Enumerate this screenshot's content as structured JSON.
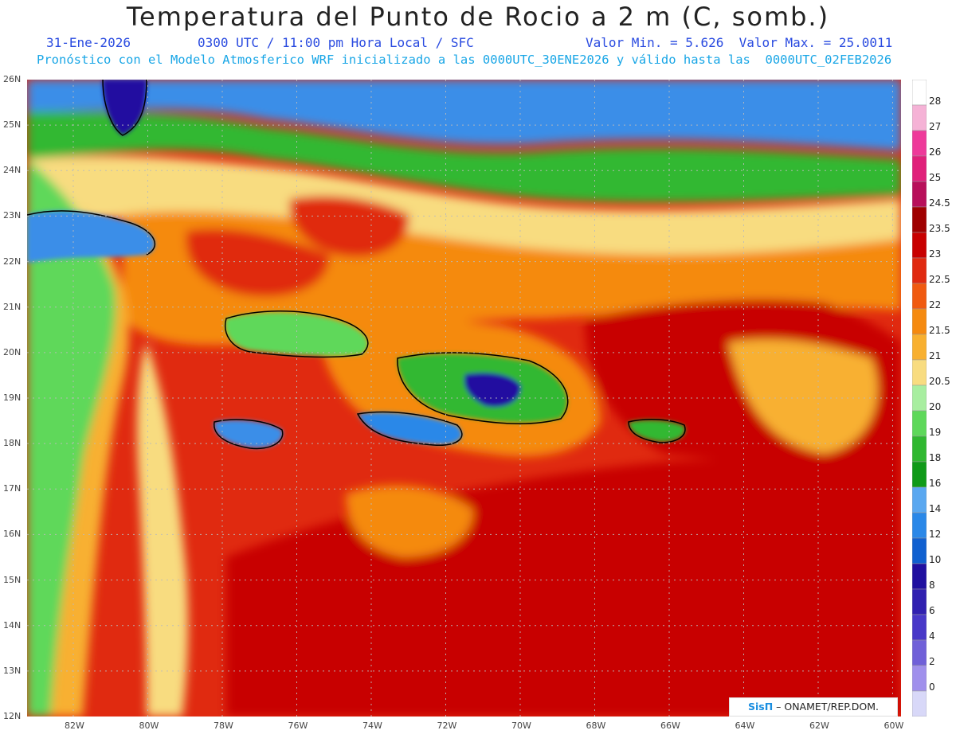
{
  "header": {
    "title": "Temperatura del Punto de Rocio a 2 m (C, somb.)",
    "date": "31-Ene-2026",
    "time": "0300 UTC / 11:00 pm Hora Local / SFC",
    "minmax": "Valor Min. = 5.626  Valor Max. = 25.0011",
    "model_line": "Pronóstico con el Modelo Atmosferico WRF inicializado a las 0000UTC_30ENE2026 y válido hasta las  0000UTC_02FEB2026"
  },
  "credit": {
    "brand": "SisΠ",
    "rest": " – ONAMET/REP.DOM."
  },
  "axes": {
    "lat_labels": [
      "26N",
      "25N",
      "24N",
      "23N",
      "22N",
      "21N",
      "20N",
      "19N",
      "18N",
      "17N",
      "16N",
      "15N",
      "14N",
      "13N",
      "12N"
    ],
    "lon_labels": [
      "82W",
      "80W",
      "78W",
      "76W",
      "74W",
      "72W",
      "70W",
      "68W",
      "66W",
      "64W",
      "62W",
      "60W"
    ]
  },
  "colorbar": {
    "levels": [
      "28",
      "27",
      "26",
      "25",
      "24.5",
      "23.5",
      "23",
      "22.5",
      "22",
      "21.5",
      "21",
      "20.5",
      "20",
      "19",
      "18",
      "16",
      "14",
      "12",
      "10",
      "8",
      "6",
      "4",
      "2",
      "0"
    ],
    "colors": [
      "#f5b2d6",
      "#ee3a9a",
      "#e0207a",
      "#b8105a",
      "#a00000",
      "#c80000",
      "#e02a10",
      "#f05a10",
      "#f58a10",
      "#f8b030",
      "#f8dc80",
      "#a8eea0",
      "#5ed85a",
      "#30b830",
      "#109a18",
      "#5aa8f0",
      "#2a88e8",
      "#1060d0",
      "#2010a0",
      "#3020b0",
      "#4838c8",
      "#7060d8",
      "#a090ec",
      "#d8d8f8"
    ],
    "top_color": "#ffffff"
  },
  "colors": {
    "sea_warm": "#e02a10",
    "sea_hot": "#c80000",
    "outline": "#000000"
  }
}
